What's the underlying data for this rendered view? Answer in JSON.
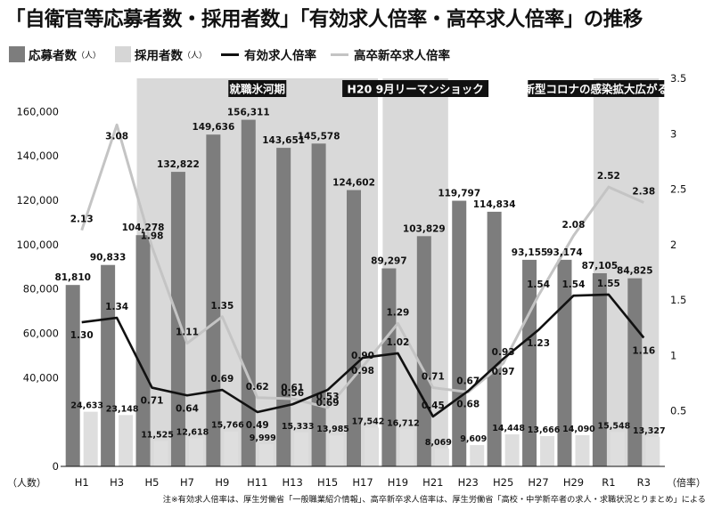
{
  "title": "「自衛官等応募者数・採用者数」「有効求人倍率・高卒求人倍率」の推移",
  "legend": {
    "applicants": {
      "label": "応募者数",
      "unit": "（人）",
      "color": "#7d7d7d"
    },
    "hired": {
      "label": "採用者数",
      "unit": "（人）",
      "color": "#d6d6d6"
    },
    "job_ratio": {
      "label": "有効求人倍率",
      "color": "#111111"
    },
    "hs_ratio": {
      "label": "高卒新卒求人倍率",
      "color": "#c4c4c4"
    }
  },
  "chart_data": {
    "type": "bar",
    "categories": [
      "H1",
      "H3",
      "H5",
      "H7",
      "H9",
      "H11",
      "H13",
      "H15",
      "H17",
      "H19",
      "H21",
      "H23",
      "H25",
      "H27",
      "H29",
      "R1",
      "R3"
    ],
    "series": [
      {
        "name": "応募者数",
        "type": "bar",
        "axis": "left",
        "values": [
          81810,
          90833,
          104278,
          132822,
          149636,
          156311,
          143651,
          145578,
          124602,
          89297,
          103829,
          119797,
          114834,
          93155,
          93174,
          87105,
          84825
        ],
        "labels": [
          "81,810",
          "90,833",
          "104,278",
          "132,822",
          "149,636",
          "156,311",
          "143,651",
          "145,578",
          "124,602",
          "89,297",
          "103,829",
          "119,797",
          "114,834",
          "93,155",
          "93,174",
          "87,105",
          "84,825"
        ]
      },
      {
        "name": "採用者数",
        "type": "bar",
        "axis": "left",
        "values": [
          24633,
          23148,
          11525,
          12618,
          15766,
          9999,
          15333,
          13985,
          17542,
          16712,
          8069,
          9609,
          14448,
          13666,
          14090,
          15548,
          13327
        ],
        "labels": [
          "24,633",
          "23,148",
          "11,525",
          "12,618",
          "15,766",
          "9,999",
          "15,333",
          "13,985",
          "17,542",
          "16,712",
          "8,069",
          "9,609",
          "14,448",
          "13,666",
          "14,090",
          "15,548",
          "13,327"
        ]
      },
      {
        "name": "有効求人倍率",
        "type": "line",
        "axis": "right",
        "values": [
          1.3,
          1.34,
          0.71,
          0.64,
          0.69,
          0.49,
          0.56,
          0.69,
          0.98,
          1.02,
          0.45,
          0.68,
          0.97,
          1.23,
          1.54,
          1.55,
          1.16
        ],
        "labels": [
          "1.30",
          "1.34",
          "0.71",
          "0.64",
          "0.69",
          "0.49",
          "0.56",
          "0.69",
          "0.98",
          "1.02",
          "0.45",
          "0.68",
          "0.97",
          "1.23",
          "1.54",
          "1.55",
          "1.16"
        ]
      },
      {
        "name": "高卒新卒求人倍率",
        "type": "line",
        "axis": "right",
        "values": [
          2.13,
          3.08,
          1.98,
          1.11,
          1.35,
          0.62,
          0.61,
          0.53,
          0.9,
          1.29,
          0.71,
          0.67,
          0.93,
          1.54,
          2.08,
          2.52,
          2.38
        ],
        "labels": [
          "2.13",
          "3.08",
          "1.98",
          "1.11",
          "1.35",
          "0.62",
          "0.61",
          "0.53",
          "0.90",
          "1.29",
          "0.71",
          "0.67",
          "0.93",
          "1.54",
          "2.08",
          "2.52",
          "2.38"
        ]
      }
    ],
    "y_left": {
      "ylim": [
        0,
        175000
      ],
      "ticks": [
        0,
        40000,
        60000,
        80000,
        100000,
        120000,
        140000,
        160000
      ],
      "tick_labels": [
        "0",
        "40,000",
        "60,000",
        "80,000",
        "100,000",
        "120,000",
        "140,000",
        "160,000"
      ],
      "unit": "（人数）"
    },
    "y_right": {
      "ylim": [
        0,
        3.5
      ],
      "ticks": [
        0.5,
        1,
        1.5,
        2,
        2.5,
        3,
        3.5
      ],
      "tick_labels": [
        "0.5",
        "1",
        "1.5",
        "2",
        "2.5",
        "3",
        "3.5"
      ],
      "unit": "（倍率）"
    },
    "shaded_periods": [
      {
        "label": "就職氷河期",
        "start": "H5",
        "end": "H17"
      },
      {
        "label": "H20 9月リーマンショック",
        "start": "H19",
        "end": "H21"
      },
      {
        "label": "新型コロナの感染拡大広がる",
        "start": "R1",
        "end": "R3"
      }
    ],
    "grid": false
  },
  "footnote": "注※有効求人倍率は、厚生労働省「一般職業紹介情報」、高卒新卒求人倍率は、厚生労働省「高校・中学新卒者の求人・求職状況とりまとめ」による"
}
